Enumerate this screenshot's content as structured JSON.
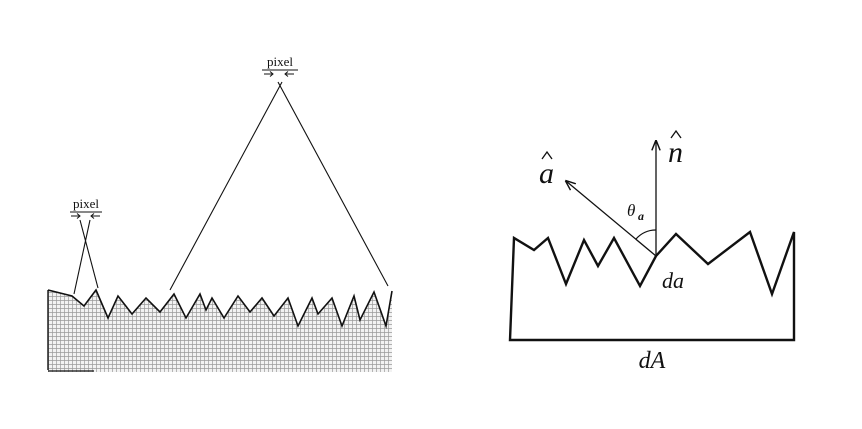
{
  "left_figure": {
    "pixel_label_small": "pixel",
    "pixel_label_large": "pixel"
  },
  "right_figure": {
    "vector_a_symbol": "a",
    "vector_n_symbol": "n",
    "angle_symbol": "θ",
    "angle_subscript": "a",
    "facet_label": "da",
    "area_label": "dA"
  },
  "colors": {
    "stroke": "#111111",
    "grid": "#9a9a9a",
    "background": "#ffffff"
  }
}
